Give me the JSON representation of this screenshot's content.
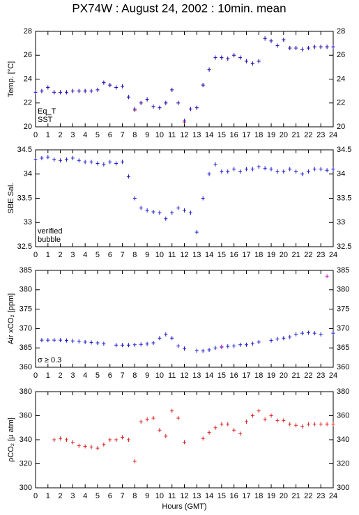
{
  "title": "PX74W : August 24, 2002 : 10min. mean",
  "chart_data": [
    {
      "type": "scatter",
      "ylabel": "Temp. [°C]",
      "xlim": [
        0,
        24
      ],
      "xticks": [
        0,
        1,
        2,
        3,
        4,
        5,
        6,
        7,
        8,
        9,
        10,
        11,
        12,
        13,
        14,
        15,
        16,
        17,
        18,
        19,
        20,
        21,
        22,
        23,
        24
      ],
      "ylim": [
        20,
        28
      ],
      "yticks": [
        20,
        22,
        24,
        26,
        28
      ],
      "x": [
        0,
        0.5,
        1,
        1.5,
        2,
        2.5,
        3,
        3.5,
        4,
        4.5,
        5,
        5.5,
        6,
        6.5,
        7,
        7.5,
        8,
        8.5,
        9,
        9.5,
        10,
        10.5,
        11,
        11.5,
        12,
        12.5,
        13,
        13.5,
        14,
        14.5,
        15,
        15.5,
        16,
        16.5,
        17,
        17.5,
        18,
        18.5,
        19,
        19.5,
        20,
        20.5,
        21,
        21.5,
        22,
        22.5,
        23,
        23.5,
        24
      ],
      "series": [
        {
          "name": "Eq_T",
          "color": "#dd2222",
          "values": [
            22.9,
            23.0,
            23.3,
            22.9,
            22.9,
            22.9,
            23.0,
            23.0,
            23.0,
            23.0,
            23.1,
            23.7,
            23.5,
            23.3,
            23.4,
            22.5,
            21.4,
            22.0,
            22.3,
            21.7,
            21.6,
            22.0,
            23.1,
            22.0,
            20.4,
            21.5,
            21.6,
            23.5,
            24.8,
            25.8,
            25.8,
            25.7,
            26.0,
            25.8,
            25.5,
            25.3,
            25.5,
            27.4,
            27.2,
            26.8,
            27.3,
            26.6,
            26.6,
            26.5,
            26.6,
            26.7,
            26.7,
            26.7,
            26.7
          ]
        },
        {
          "name": "SST",
          "color": "#1a1acc",
          "values": [
            22.9,
            23.0,
            23.3,
            22.9,
            22.9,
            22.9,
            23.0,
            23.0,
            23.0,
            23.0,
            23.1,
            23.7,
            23.5,
            23.3,
            23.4,
            22.5,
            21.5,
            22.0,
            22.3,
            21.7,
            21.6,
            22.0,
            23.1,
            22.0,
            20.5,
            21.5,
            21.6,
            23.5,
            24.8,
            25.8,
            25.8,
            25.7,
            26.0,
            25.8,
            25.5,
            25.3,
            25.5,
            27.4,
            27.2,
            26.8,
            27.3,
            26.6,
            26.6,
            26.5,
            26.6,
            26.7,
            26.7,
            26.7,
            26.7
          ]
        }
      ]
    },
    {
      "type": "scatter",
      "ylabel": "SBE Sal.",
      "xlim": [
        0,
        24
      ],
      "xticks": [
        0,
        1,
        2,
        3,
        4,
        5,
        6,
        7,
        8,
        9,
        10,
        11,
        12,
        13,
        14,
        15,
        16,
        17,
        18,
        19,
        20,
        21,
        22,
        23,
        24
      ],
      "ylim": [
        32.5,
        34.5
      ],
      "yticks": [
        32.5,
        33,
        33.5,
        34,
        34.5
      ],
      "x": [
        0,
        0.5,
        1,
        1.5,
        2,
        2.5,
        3,
        3.5,
        4,
        4.5,
        5,
        5.5,
        6,
        6.5,
        7,
        7.5,
        8,
        8.5,
        9,
        9.5,
        10,
        10.5,
        11,
        11.5,
        12,
        12.5,
        13,
        13.5,
        14,
        14.5,
        15,
        15.5,
        16,
        16.5,
        17,
        17.5,
        18,
        18.5,
        19,
        19.5,
        20,
        20.5,
        21,
        21.5,
        22,
        22.5,
        23,
        23.5,
        24
      ],
      "series": [
        {
          "name": "verified",
          "color": "#1a1acc",
          "values": [
            34.3,
            34.33,
            34.35,
            34.3,
            34.28,
            34.3,
            34.33,
            34.28,
            34.25,
            34.25,
            34.22,
            34.2,
            34.25,
            34.22,
            34.25,
            33.95,
            33.5,
            33.3,
            33.25,
            33.22,
            33.2,
            33.08,
            33.2,
            33.3,
            33.25,
            33.2,
            32.8,
            33.5,
            34.0,
            34.2,
            34.05,
            34.05,
            34.1,
            34.05,
            34.1,
            34.1,
            34.15,
            34.12,
            34.1,
            34.05,
            34.05,
            34.1,
            34.05,
            34.0,
            34.05,
            34.1,
            34.1,
            34.08,
            34.1
          ]
        },
        {
          "name": "bubble",
          "color": "#cc22cc",
          "values": [
            null,
            null,
            null,
            null,
            null,
            null,
            null,
            null,
            null,
            null,
            null,
            null,
            null,
            null,
            null,
            null,
            null,
            null,
            null,
            null,
            null,
            null,
            null,
            null,
            null,
            null,
            null,
            null,
            null,
            null,
            null,
            null,
            null,
            null,
            null,
            null,
            null,
            null,
            null,
            null,
            null,
            null,
            null,
            null,
            null,
            null,
            null,
            null,
            null
          ]
        }
      ]
    },
    {
      "type": "scatter",
      "ylabel": "Air xCO₂ [ppm]",
      "xlim": [
        0,
        24
      ],
      "xticks": [
        0,
        1,
        2,
        3,
        4,
        5,
        6,
        7,
        8,
        9,
        10,
        11,
        12,
        13,
        14,
        15,
        16,
        17,
        18,
        19,
        20,
        21,
        22,
        23,
        24
      ],
      "ylim": [
        360,
        385
      ],
      "yticks": [
        360,
        365,
        370,
        375,
        380,
        385
      ],
      "x": [
        0,
        0.5,
        1,
        1.5,
        2,
        2.5,
        3,
        3.5,
        4,
        4.5,
        5,
        5.5,
        6,
        6.5,
        7,
        7.5,
        8,
        8.5,
        9,
        9.5,
        10,
        10.5,
        11,
        11.5,
        12,
        12.5,
        13,
        13.5,
        14,
        14.5,
        15,
        15.5,
        16,
        16.5,
        17,
        17.5,
        18,
        18.5,
        19,
        19.5,
        20,
        20.5,
        21,
        21.5,
        22,
        22.5,
        23,
        23.5,
        24
      ],
      "series": [
        {
          "color": "#1a1acc",
          "values": [
            null,
            367,
            367,
            367,
            367,
            366.9,
            366.8,
            366.7,
            366.5,
            366.4,
            366.3,
            366.1,
            null,
            365.7,
            365.7,
            365.7,
            365.8,
            365.9,
            366,
            366.3,
            367.5,
            368.5,
            367.5,
            365.5,
            364.8,
            null,
            364.3,
            364.2,
            364.5,
            365,
            365.2,
            365.4,
            365.5,
            365.8,
            365.8,
            366.1,
            366.5,
            null,
            366.9,
            367.3,
            367.5,
            367.8,
            368.5,
            368.8,
            368.9,
            368.8,
            368.5,
            null,
            368.8
          ]
        },
        {
          "name": "σ ≥ 0.3",
          "color": "#cc22cc",
          "values": [
            null,
            null,
            null,
            null,
            null,
            null,
            null,
            null,
            null,
            null,
            null,
            null,
            null,
            null,
            null,
            null,
            null,
            null,
            null,
            null,
            null,
            null,
            null,
            null,
            null,
            null,
            null,
            null,
            null,
            null,
            365.3,
            null,
            null,
            null,
            null,
            null,
            null,
            null,
            null,
            null,
            null,
            null,
            null,
            null,
            null,
            null,
            null,
            383.5,
            null
          ]
        }
      ]
    },
    {
      "type": "scatter",
      "ylabel": "ρCO₂ [μ atm]",
      "xlabel": "Hours (GMT)",
      "xlim": [
        0,
        24
      ],
      "xticks": [
        0,
        1,
        2,
        3,
        4,
        5,
        6,
        7,
        8,
        9,
        10,
        11,
        12,
        13,
        14,
        15,
        16,
        17,
        18,
        19,
        20,
        21,
        22,
        23,
        24
      ],
      "ylim": [
        300,
        380
      ],
      "yticks": [
        300,
        320,
        340,
        360,
        380
      ],
      "x": [
        0,
        0.5,
        1,
        1.5,
        2,
        2.5,
        3,
        3.5,
        4,
        4.5,
        5,
        5.5,
        6,
        6.5,
        7,
        7.5,
        8,
        8.5,
        9,
        9.5,
        10,
        10.5,
        11,
        11.5,
        12,
        12.5,
        13,
        13.5,
        14,
        14.5,
        15,
        15.5,
        16,
        16.5,
        17,
        17.5,
        18,
        18.5,
        19,
        19.5,
        20,
        20.5,
        21,
        21.5,
        22,
        22.5,
        23,
        23.5,
        24
      ],
      "series": [
        {
          "color": "#dd2222",
          "values": [
            null,
            null,
            null,
            340,
            341,
            340,
            338,
            335,
            334.5,
            334,
            333,
            336,
            340,
            340,
            342,
            340,
            322,
            355,
            357,
            358,
            348,
            343,
            364,
            358,
            338,
            null,
            null,
            341,
            346,
            350,
            353,
            353,
            348,
            345,
            355,
            360,
            364,
            357,
            360,
            356,
            356,
            353,
            352,
            351,
            353,
            353,
            353,
            353,
            353
          ]
        }
      ]
    }
  ]
}
